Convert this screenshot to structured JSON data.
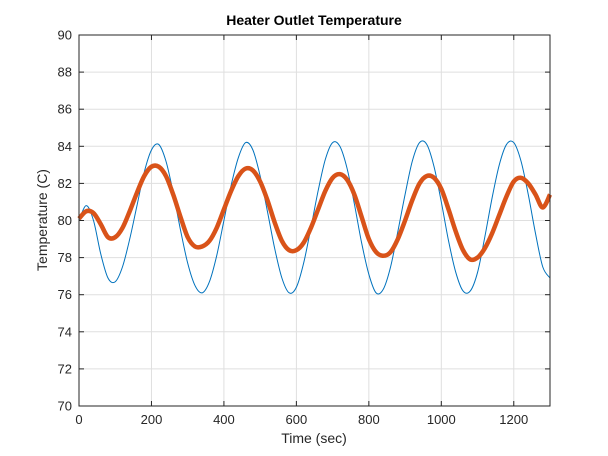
{
  "chart_data": {
    "type": "line",
    "title": "Heater Outlet Temperature",
    "xlabel": "Time (sec)",
    "ylabel": "Temperature (C)",
    "xlim": [
      0,
      1300
    ],
    "ylim": [
      70,
      90
    ],
    "xticks": [
      "0",
      "200",
      "400",
      "600",
      "800",
      "1000",
      "1200"
    ],
    "yticks": [
      "70",
      "72",
      "74",
      "76",
      "78",
      "80",
      "82",
      "84",
      "86",
      "88",
      "90"
    ],
    "grid": true,
    "series": [
      {
        "color": "#0072BD",
        "width": "thin",
        "x": [
          0,
          20,
          40,
          60,
          80,
          100,
          120,
          140,
          160,
          180,
          200,
          220,
          240,
          260,
          280,
          300,
          320,
          340,
          360,
          380,
          400,
          420,
          440,
          460,
          480,
          500,
          520,
          540,
          560,
          580,
          600,
          620,
          640,
          660,
          680,
          700,
          720,
          740,
          760,
          780,
          800,
          820,
          840,
          860,
          880,
          900,
          920,
          940,
          960,
          980,
          1000,
          1020,
          1040,
          1060,
          1080,
          1100,
          1120,
          1140,
          1160,
          1180,
          1200,
          1220,
          1240,
          1260,
          1280,
          1300
        ],
        "y": [
          80.0,
          80.8,
          80.0,
          78.2,
          76.9,
          76.7,
          77.5,
          79.0,
          80.8,
          82.6,
          83.8,
          84.1,
          83.2,
          81.5,
          79.5,
          77.7,
          76.5,
          76.1,
          76.7,
          78.1,
          80.0,
          81.9,
          83.4,
          84.2,
          83.8,
          82.4,
          80.5,
          78.5,
          76.9,
          76.1,
          76.4,
          77.7,
          79.6,
          81.6,
          83.3,
          84.2,
          84.0,
          82.8,
          80.9,
          78.8,
          77.1,
          76.1,
          76.3,
          77.5,
          79.4,
          81.4,
          83.2,
          84.2,
          84.1,
          82.9,
          81.0,
          78.9,
          77.2,
          76.2,
          76.2,
          77.2,
          79.1,
          81.2,
          83.0,
          84.1,
          84.2,
          83.2,
          81.4,
          79.3,
          77.5,
          76.9
        ]
      },
      {
        "color": "#D95319",
        "width": "thick",
        "x": [
          0,
          20,
          40,
          60,
          80,
          100,
          120,
          140,
          160,
          180,
          200,
          220,
          240,
          260,
          280,
          300,
          320,
          340,
          360,
          380,
          400,
          420,
          440,
          460,
          480,
          500,
          520,
          540,
          560,
          580,
          600,
          620,
          640,
          660,
          680,
          700,
          720,
          740,
          760,
          780,
          800,
          820,
          840,
          860,
          880,
          900,
          920,
          940,
          960,
          980,
          1000,
          1020,
          1040,
          1060,
          1080,
          1100,
          1120,
          1140,
          1160,
          1180,
          1200,
          1220,
          1240,
          1260,
          1280,
          1300
        ],
        "y": [
          80.1,
          80.5,
          80.4,
          79.8,
          79.1,
          79.1,
          79.6,
          80.5,
          81.5,
          82.4,
          82.9,
          82.9,
          82.4,
          81.4,
          80.2,
          79.1,
          78.6,
          78.6,
          78.9,
          79.6,
          80.6,
          81.6,
          82.4,
          82.8,
          82.7,
          82.1,
          81.1,
          79.9,
          78.9,
          78.4,
          78.4,
          78.8,
          79.6,
          80.6,
          81.6,
          82.3,
          82.5,
          82.2,
          81.4,
          80.2,
          79.0,
          78.3,
          78.1,
          78.3,
          79.0,
          80.0,
          81.1,
          82.0,
          82.4,
          82.3,
          81.7,
          80.6,
          79.4,
          78.4,
          77.9,
          78.0,
          78.5,
          79.3,
          80.3,
          81.3,
          82.1,
          82.3,
          82.0,
          81.4,
          80.7,
          81.4
        ]
      }
    ]
  }
}
